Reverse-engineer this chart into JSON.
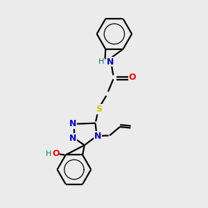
{
  "bg_color": "#ebebeb",
  "atom_colors": {
    "C": "#000000",
    "N": "#0000cc",
    "O": "#ff0000",
    "S": "#cccc00",
    "H": "#008080"
  },
  "bond_lw": 1.6,
  "font_size_atom": 9,
  "font_size_h": 8
}
